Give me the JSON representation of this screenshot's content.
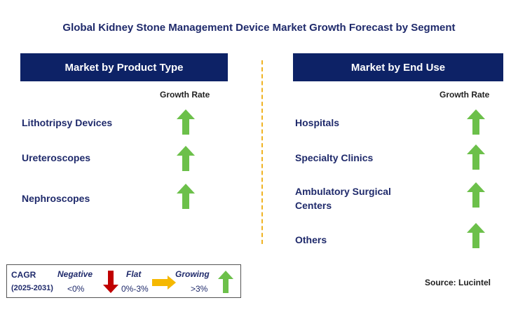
{
  "title": "Global Kidney Stone Management Device Market Growth Forecast by Segment",
  "left_panel": {
    "header": "Market by Product Type",
    "growth_label": "Growth Rate",
    "segments": [
      {
        "label": "Lithotripsy Devices",
        "trend": "growing"
      },
      {
        "label": "Ureteroscopes",
        "trend": "growing"
      },
      {
        "label": "Nephroscopes",
        "trend": "growing"
      }
    ]
  },
  "right_panel": {
    "header": "Market by End Use",
    "growth_label": "Growth Rate",
    "segments": [
      {
        "label": "Hospitals",
        "trend": "growing"
      },
      {
        "label": "Specialty Clinics",
        "trend": "growing"
      },
      {
        "label": "Ambulatory Surgical",
        "label_line2": "Centers",
        "trend": "growing"
      },
      {
        "label": "Others",
        "trend": "growing"
      }
    ]
  },
  "legend": {
    "cagr": "CAGR",
    "period": "(2025-2031)",
    "negative": {
      "label": "Negative",
      "range": "<0%",
      "color": "#c00000"
    },
    "flat": {
      "label": "Flat",
      "range": "0%-3%",
      "color": "#f5b800"
    },
    "growing": {
      "label": "Growing",
      "range": ">3%",
      "color": "#6cc04a"
    }
  },
  "source": "Source: Lucintel",
  "colors": {
    "header_bg": "#0d2266",
    "title_text": "#1f2a6b",
    "divider": "#f0b323",
    "growing_arrow": "#6cc04a"
  }
}
